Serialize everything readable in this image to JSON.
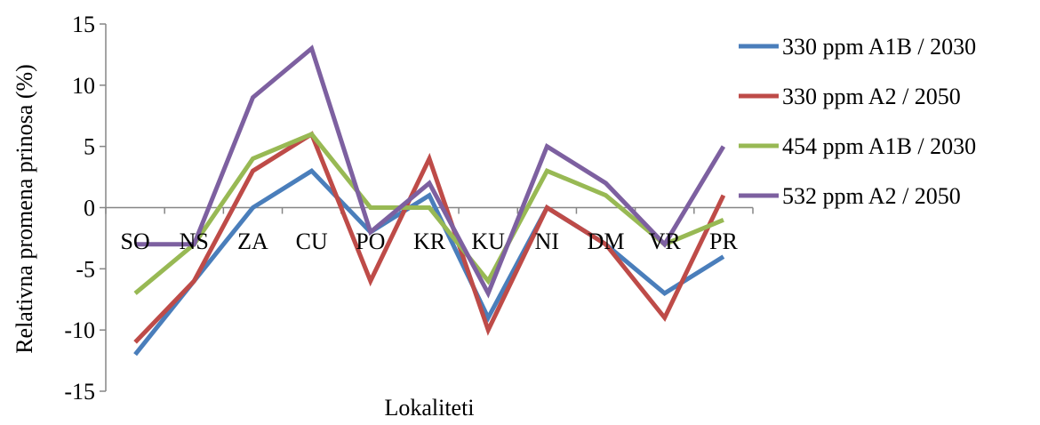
{
  "chart_data": {
    "type": "line",
    "title": "",
    "xlabel": "Lokaliteti",
    "ylabel": "Relativna promena prinosa (%)",
    "ylim": [
      -15,
      15
    ],
    "yticks": [
      -15,
      -10,
      -5,
      0,
      5,
      10,
      15
    ],
    "categories": [
      "SO",
      "NS",
      "ZA",
      "CU",
      "PO",
      "KR",
      "KU",
      "NI",
      "DM",
      "VR",
      "PR"
    ],
    "grid": false,
    "legend_position": "right",
    "series": [
      {
        "name": "330 ppm A1B / 2030",
        "color": "#4a7ebb",
        "values": [
          -12,
          -6,
          0,
          3,
          -2,
          1,
          -9,
          0,
          -3,
          -7,
          -4
        ]
      },
      {
        "name": "330 ppm A2 / 2050",
        "color": "#be4b48",
        "values": [
          -11,
          -6,
          3,
          6,
          -6,
          4,
          -10,
          0,
          -3,
          -9,
          1
        ]
      },
      {
        "name": "454 ppm A1B / 2030",
        "color": "#98b954",
        "values": [
          -7,
          -3,
          4,
          6,
          0,
          0,
          -6,
          3,
          1,
          -3,
          -1
        ]
      },
      {
        "name": "532 ppm A2 / 2050",
        "color": "#7d60a0",
        "values": [
          -3,
          -3,
          9,
          13,
          -2,
          2,
          -7,
          5,
          2,
          -3,
          5
        ]
      }
    ]
  }
}
